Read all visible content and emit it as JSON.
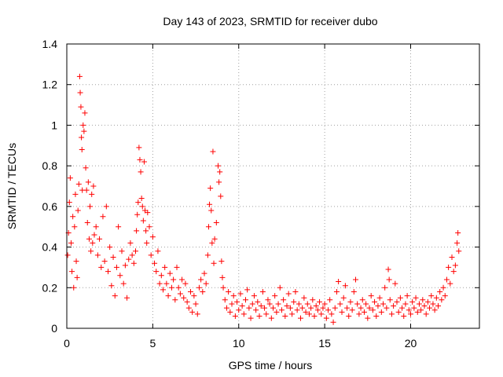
{
  "chart_data": {
    "type": "scatter",
    "title": "Day 143 of 2023, SRMTID for receiver dubo",
    "xlabel": "GPS time / hours",
    "ylabel": "SRMTID / TECUs",
    "xlim": [
      0,
      24
    ],
    "ylim": [
      0,
      1.4
    ],
    "xticks": [
      0,
      5,
      10,
      15,
      20
    ],
    "xtick_labels": [
      "0",
      "5",
      "10",
      "15",
      "20"
    ],
    "yticks": [
      0,
      0.2,
      0.4,
      0.6,
      0.8,
      1.0,
      1.2,
      1.4
    ],
    "ytick_labels": [
      "0",
      "0.2",
      "0.4",
      "0.6",
      "0.8",
      "1",
      "1.2",
      "1.4"
    ],
    "grid": true,
    "marker": "+",
    "color": "#ff0000",
    "series": [
      {
        "name": "SRMTID",
        "points": [
          [
            0.05,
            0.36
          ],
          [
            0.1,
            0.47
          ],
          [
            0.15,
            0.62
          ],
          [
            0.2,
            0.74
          ],
          [
            0.25,
            0.42
          ],
          [
            0.3,
            0.28
          ],
          [
            0.35,
            0.55
          ],
          [
            0.4,
            0.2
          ],
          [
            0.45,
            0.5
          ],
          [
            0.5,
            0.66
          ],
          [
            0.55,
            0.33
          ],
          [
            0.6,
            0.25
          ],
          [
            0.65,
            0.58
          ],
          [
            0.7,
            0.71
          ],
          [
            0.75,
            1.24
          ],
          [
            0.78,
            1.16
          ],
          [
            0.82,
            1.09
          ],
          [
            0.85,
            0.94
          ],
          [
            0.88,
            0.88
          ],
          [
            0.9,
            0.68
          ],
          [
            0.95,
            1.0
          ],
          [
            1.0,
            0.97
          ],
          [
            1.05,
            1.06
          ],
          [
            1.1,
            0.79
          ],
          [
            1.15,
            0.68
          ],
          [
            1.2,
            0.52
          ],
          [
            1.25,
            0.72
          ],
          [
            1.3,
            0.44
          ],
          [
            1.35,
            0.6
          ],
          [
            1.4,
            0.38
          ],
          [
            1.45,
            0.66
          ],
          [
            1.5,
            0.42
          ],
          [
            1.55,
            0.7
          ],
          [
            1.6,
            0.46
          ],
          [
            1.7,
            0.5
          ],
          [
            1.8,
            0.36
          ],
          [
            1.9,
            0.44
          ],
          [
            2.0,
            0.3
          ],
          [
            2.1,
            0.55
          ],
          [
            2.2,
            0.33
          ],
          [
            2.3,
            0.6
          ],
          [
            2.4,
            0.28
          ],
          [
            2.5,
            0.4
          ],
          [
            2.6,
            0.21
          ],
          [
            2.7,
            0.35
          ],
          [
            2.8,
            0.16
          ],
          [
            2.9,
            0.3
          ],
          [
            3.0,
            0.5
          ],
          [
            3.1,
            0.26
          ],
          [
            3.2,
            0.38
          ],
          [
            3.3,
            0.22
          ],
          [
            3.4,
            0.31
          ],
          [
            3.5,
            0.15
          ],
          [
            3.6,
            0.34
          ],
          [
            3.7,
            0.42
          ],
          [
            3.8,
            0.36
          ],
          [
            3.9,
            0.32
          ],
          [
            4.0,
            0.38
          ],
          [
            4.05,
            0.48
          ],
          [
            4.1,
            0.56
          ],
          [
            4.15,
            0.62
          ],
          [
            4.2,
            0.89
          ],
          [
            4.25,
            0.83
          ],
          [
            4.3,
            0.77
          ],
          [
            4.35,
            0.64
          ],
          [
            4.4,
            0.6
          ],
          [
            4.45,
            0.53
          ],
          [
            4.5,
            0.82
          ],
          [
            4.55,
            0.58
          ],
          [
            4.6,
            0.48
          ],
          [
            4.65,
            0.42
          ],
          [
            4.7,
            0.57
          ],
          [
            4.8,
            0.5
          ],
          [
            4.9,
            0.36
          ],
          [
            5.0,
            0.45
          ],
          [
            5.1,
            0.32
          ],
          [
            5.2,
            0.28
          ],
          [
            5.3,
            0.38
          ],
          [
            5.4,
            0.22
          ],
          [
            5.5,
            0.26
          ],
          [
            5.6,
            0.19
          ],
          [
            5.7,
            0.3
          ],
          [
            5.8,
            0.22
          ],
          [
            5.9,
            0.16
          ],
          [
            6.0,
            0.27
          ],
          [
            6.1,
            0.2
          ],
          [
            6.2,
            0.24
          ],
          [
            6.3,
            0.14
          ],
          [
            6.4,
            0.3
          ],
          [
            6.5,
            0.2
          ],
          [
            6.6,
            0.17
          ],
          [
            6.7,
            0.24
          ],
          [
            6.8,
            0.15
          ],
          [
            6.9,
            0.22
          ],
          [
            7.0,
            0.13
          ],
          [
            7.1,
            0.1
          ],
          [
            7.2,
            0.18
          ],
          [
            7.3,
            0.08
          ],
          [
            7.4,
            0.16
          ],
          [
            7.5,
            0.12
          ],
          [
            7.6,
            0.07
          ],
          [
            7.7,
            0.2
          ],
          [
            7.8,
            0.24
          ],
          [
            7.9,
            0.18
          ],
          [
            8.0,
            0.27
          ],
          [
            8.1,
            0.22
          ],
          [
            8.2,
            0.36
          ],
          [
            8.25,
            0.5
          ],
          [
            8.3,
            0.61
          ],
          [
            8.35,
            0.69
          ],
          [
            8.4,
            0.58
          ],
          [
            8.45,
            0.42
          ],
          [
            8.5,
            0.87
          ],
          [
            8.55,
            0.32
          ],
          [
            8.6,
            0.44
          ],
          [
            8.7,
            0.52
          ],
          [
            8.8,
            0.8
          ],
          [
            8.85,
            0.72
          ],
          [
            8.9,
            0.77
          ],
          [
            8.95,
            0.65
          ],
          [
            9.0,
            0.33
          ],
          [
            9.05,
            0.25
          ],
          [
            9.1,
            0.2
          ],
          [
            9.2,
            0.14
          ],
          [
            9.3,
            0.1
          ],
          [
            9.4,
            0.18
          ],
          [
            9.5,
            0.08
          ],
          [
            9.6,
            0.12
          ],
          [
            9.7,
            0.16
          ],
          [
            9.8,
            0.06
          ],
          [
            9.9,
            0.13
          ],
          [
            10.0,
            0.09
          ],
          [
            10.1,
            0.17
          ],
          [
            10.2,
            0.11
          ],
          [
            10.3,
            0.07
          ],
          [
            10.4,
            0.14
          ],
          [
            10.5,
            0.19
          ],
          [
            10.6,
            0.1
          ],
          [
            10.7,
            0.05
          ],
          [
            10.8,
            0.12
          ],
          [
            10.9,
            0.16
          ],
          [
            11.0,
            0.09
          ],
          [
            11.1,
            0.13
          ],
          [
            11.2,
            0.06
          ],
          [
            11.3,
            0.11
          ],
          [
            11.4,
            0.18
          ],
          [
            11.5,
            0.1
          ],
          [
            11.6,
            0.07
          ],
          [
            11.7,
            0.14
          ],
          [
            11.8,
            0.12
          ],
          [
            11.9,
            0.05
          ],
          [
            12.0,
            0.1
          ],
          [
            12.1,
            0.16
          ],
          [
            12.2,
            0.08
          ],
          [
            12.3,
            0.12
          ],
          [
            12.4,
            0.2
          ],
          [
            12.5,
            0.09
          ],
          [
            12.6,
            0.14
          ],
          [
            12.7,
            0.06
          ],
          [
            12.8,
            0.11
          ],
          [
            12.9,
            0.17
          ],
          [
            13.0,
            0.1
          ],
          [
            13.1,
            0.07
          ],
          [
            13.2,
            0.13
          ],
          [
            13.3,
            0.18
          ],
          [
            13.4,
            0.09
          ],
          [
            13.5,
            0.12
          ],
          [
            13.6,
            0.05
          ],
          [
            13.7,
            0.1
          ],
          [
            13.8,
            0.15
          ],
          [
            13.9,
            0.08
          ],
          [
            14.0,
            0.12
          ],
          [
            14.1,
            0.07
          ],
          [
            14.2,
            0.1
          ],
          [
            14.3,
            0.14
          ],
          [
            14.4,
            0.06
          ],
          [
            14.5,
            0.11
          ],
          [
            14.6,
            0.09
          ],
          [
            14.7,
            0.13
          ],
          [
            14.8,
            0.07
          ],
          [
            14.9,
            0.1
          ],
          [
            15.0,
            0.12
          ],
          [
            15.1,
            0.05
          ],
          [
            15.2,
            0.09
          ],
          [
            15.3,
            0.14
          ],
          [
            15.4,
            0.07
          ],
          [
            15.5,
            0.03
          ],
          [
            15.6,
            0.1
          ],
          [
            15.7,
            0.18
          ],
          [
            15.8,
            0.23
          ],
          [
            15.9,
            0.12
          ],
          [
            16.0,
            0.08
          ],
          [
            16.1,
            0.15
          ],
          [
            16.2,
            0.21
          ],
          [
            16.3,
            0.1
          ],
          [
            16.4,
            0.06
          ],
          [
            16.5,
            0.13
          ],
          [
            16.6,
            0.09
          ],
          [
            16.7,
            0.18
          ],
          [
            16.8,
            0.24
          ],
          [
            16.9,
            0.12
          ],
          [
            17.0,
            0.07
          ],
          [
            17.1,
            0.1
          ],
          [
            17.2,
            0.14
          ],
          [
            17.3,
            0.08
          ],
          [
            17.4,
            0.12
          ],
          [
            17.5,
            0.05
          ],
          [
            17.6,
            0.1
          ],
          [
            17.7,
            0.16
          ],
          [
            17.8,
            0.09
          ],
          [
            17.9,
            0.13
          ],
          [
            18.0,
            0.06
          ],
          [
            18.1,
            0.11
          ],
          [
            18.2,
            0.15
          ],
          [
            18.3,
            0.08
          ],
          [
            18.4,
            0.12
          ],
          [
            18.5,
            0.2
          ],
          [
            18.6,
            0.1
          ],
          [
            18.7,
            0.29
          ],
          [
            18.75,
            0.24
          ],
          [
            18.8,
            0.14
          ],
          [
            18.9,
            0.07
          ],
          [
            19.0,
            0.11
          ],
          [
            19.1,
            0.22
          ],
          [
            19.2,
            0.13
          ],
          [
            19.3,
            0.08
          ],
          [
            19.4,
            0.15
          ],
          [
            19.5,
            0.1
          ],
          [
            19.6,
            0.06
          ],
          [
            19.7,
            0.12
          ],
          [
            19.8,
            0.16
          ],
          [
            19.9,
            0.09
          ],
          [
            20.0,
            0.07
          ],
          [
            20.1,
            0.13
          ],
          [
            20.2,
            0.1
          ],
          [
            20.3,
            0.15
          ],
          [
            20.4,
            0.08
          ],
          [
            20.5,
            0.12
          ],
          [
            20.6,
            0.09
          ],
          [
            20.7,
            0.14
          ],
          [
            20.8,
            0.11
          ],
          [
            20.9,
            0.07
          ],
          [
            21.0,
            0.13
          ],
          [
            21.1,
            0.1
          ],
          [
            21.2,
            0.16
          ],
          [
            21.3,
            0.12
          ],
          [
            21.4,
            0.09
          ],
          [
            21.5,
            0.15
          ],
          [
            21.6,
            0.11
          ],
          [
            21.7,
            0.18
          ],
          [
            21.8,
            0.14
          ],
          [
            21.9,
            0.2
          ],
          [
            22.0,
            0.16
          ],
          [
            22.1,
            0.24
          ],
          [
            22.2,
            0.3
          ],
          [
            22.3,
            0.22
          ],
          [
            22.4,
            0.35
          ],
          [
            22.5,
            0.28
          ],
          [
            22.6,
            0.31
          ],
          [
            22.7,
            0.42
          ],
          [
            22.75,
            0.47
          ],
          [
            22.8,
            0.38
          ]
        ]
      }
    ]
  }
}
